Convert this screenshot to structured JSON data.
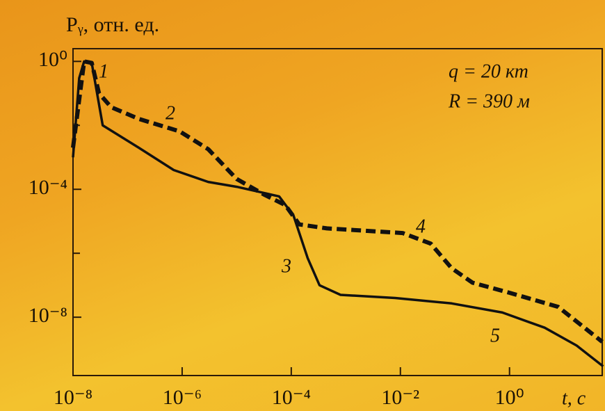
{
  "chart_data": {
    "type": "line",
    "y_label": "Pᵧ, отн. ед.",
    "x_label": "t, c",
    "log_x": true,
    "log_y": true,
    "xlim": [
      1e-08,
      50
    ],
    "ylim": [
      1.5e-10,
      2.5
    ],
    "xticks": [
      {
        "value": 1e-08,
        "label": "10⁻⁸"
      },
      {
        "value": 1e-06,
        "label": "10⁻⁶"
      },
      {
        "value": 0.0001,
        "label": "10⁻⁴"
      },
      {
        "value": 0.01,
        "label": "10⁻²"
      },
      {
        "value": 1,
        "label": "10⁰"
      }
    ],
    "yticks": [
      {
        "value": 1,
        "label": "10⁰"
      },
      {
        "value": 0.0001,
        "label": "10⁻⁴"
      },
      {
        "value": 1e-08,
        "label": "10⁻⁸"
      }
    ],
    "yminor": [
      0.01,
      1e-06
    ],
    "annotations": [
      "1",
      "2",
      "3",
      "4",
      "5",
      "q = 20 кт",
      "R = 390 м"
    ],
    "series": [
      {
        "color": "#111111",
        "dash": false,
        "x": [
          1e-08,
          1.3e-08,
          1.6e-08,
          2.2e-08,
          3.5e-08,
          1.6e-07,
          7e-07,
          3e-06,
          1e-05,
          6e-05,
          0.00011,
          0.0002,
          0.00033,
          0.0008,
          0.008,
          0.087,
          0.74,
          4.4,
          17,
          52
        ],
        "values": [
          0.001,
          0.3,
          1,
          0.9,
          0.01,
          0.002,
          0.0004,
          0.00017,
          0.00012,
          6e-05,
          1.5e-05,
          7e-07,
          1e-07,
          5e-08,
          4e-08,
          2.7e-08,
          1.4e-08,
          4.7e-09,
          1.3e-09,
          2.9e-10
        ]
      },
      {
        "color": "#111111",
        "dash": true,
        "x": [
          1e-08,
          1.6e-08,
          2.2e-08,
          3e-08,
          5e-08,
          1.6e-07,
          9e-07,
          3e-06,
          1e-05,
          3.2e-05,
          7.8e-05,
          0.00014,
          0.00045,
          0.011,
          0.036,
          0.087,
          0.21,
          1,
          7.8,
          50
        ],
        "values": [
          0.002,
          1,
          0.9,
          0.1,
          0.037,
          0.016,
          0.0065,
          0.0018,
          0.00021,
          6.8e-05,
          3.2e-05,
          8e-06,
          6e-06,
          4.3e-06,
          2e-06,
          3.4e-07,
          1.2e-07,
          5.8e-08,
          2.1e-08,
          1.7e-09
        ]
      }
    ]
  }
}
